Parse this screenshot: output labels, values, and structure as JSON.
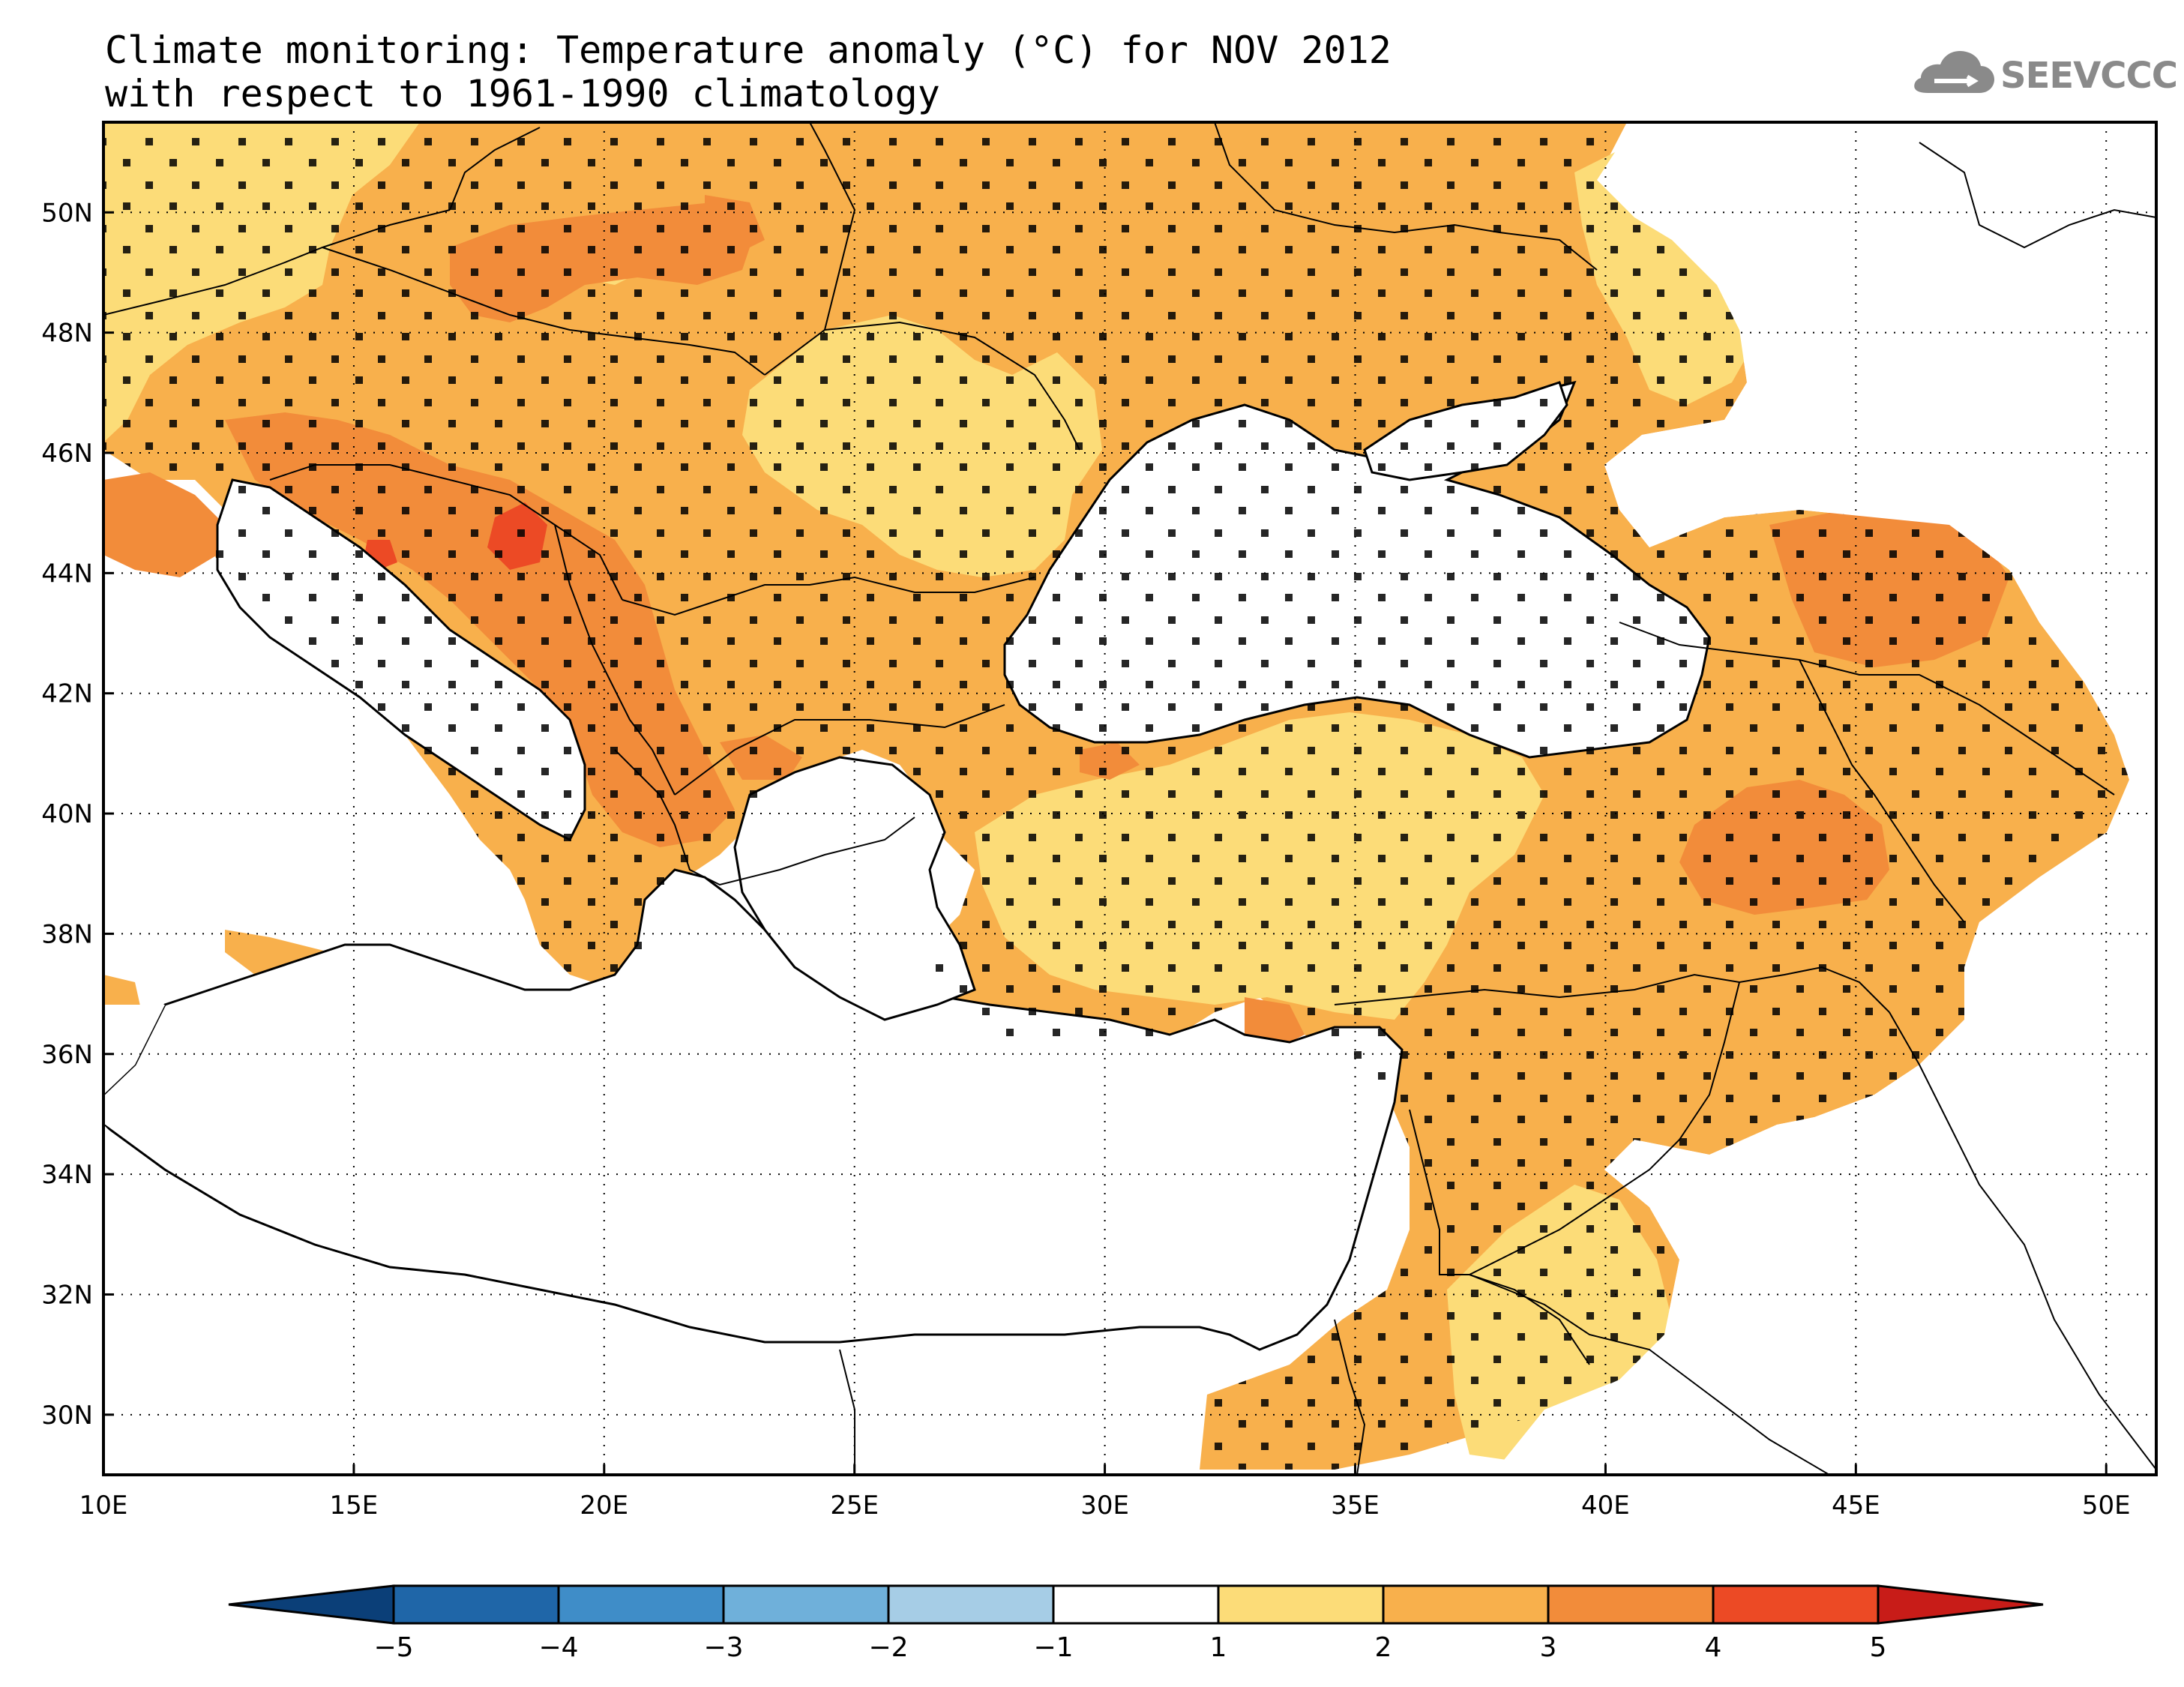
{
  "title": {
    "line1": "Climate monitoring: Temperature anomaly (°C) for NOV 2012",
    "line2": "with respect to 1961-1990 climatology"
  },
  "logo": {
    "text": "SEEVCCC",
    "icon": "cloud-icon"
  },
  "map": {
    "lon_range": [
      10,
      51
    ],
    "lat_range": [
      29,
      51.5
    ],
    "lon_ticks": [
      "10E",
      "15E",
      "20E",
      "25E",
      "30E",
      "35E",
      "40E",
      "45E",
      "50E"
    ],
    "lat_ticks": [
      "30N",
      "32N",
      "34N",
      "36N",
      "38N",
      "40N",
      "42N",
      "44N",
      "46N",
      "48N",
      "50N"
    ],
    "grid": "dotted"
  },
  "colorbar": {
    "tick_labels": [
      "-5",
      "-4",
      "-3",
      "-2",
      "-1",
      "1",
      "2",
      "3",
      "4",
      "5"
    ],
    "colors": [
      "#0b3f78",
      "#1f66a8",
      "#3f8dc8",
      "#6fb0da",
      "#a6cde6",
      "#ffffff",
      "#fcdc78",
      "#f8b04c",
      "#f28c3a",
      "#ec4a25",
      "#c81c18"
    ]
  },
  "palette": {
    "c1_2": "#fcdc78",
    "c2_3": "#f8b04c",
    "c3_4": "#f28c3a",
    "c4_5": "#ec4a25"
  }
}
